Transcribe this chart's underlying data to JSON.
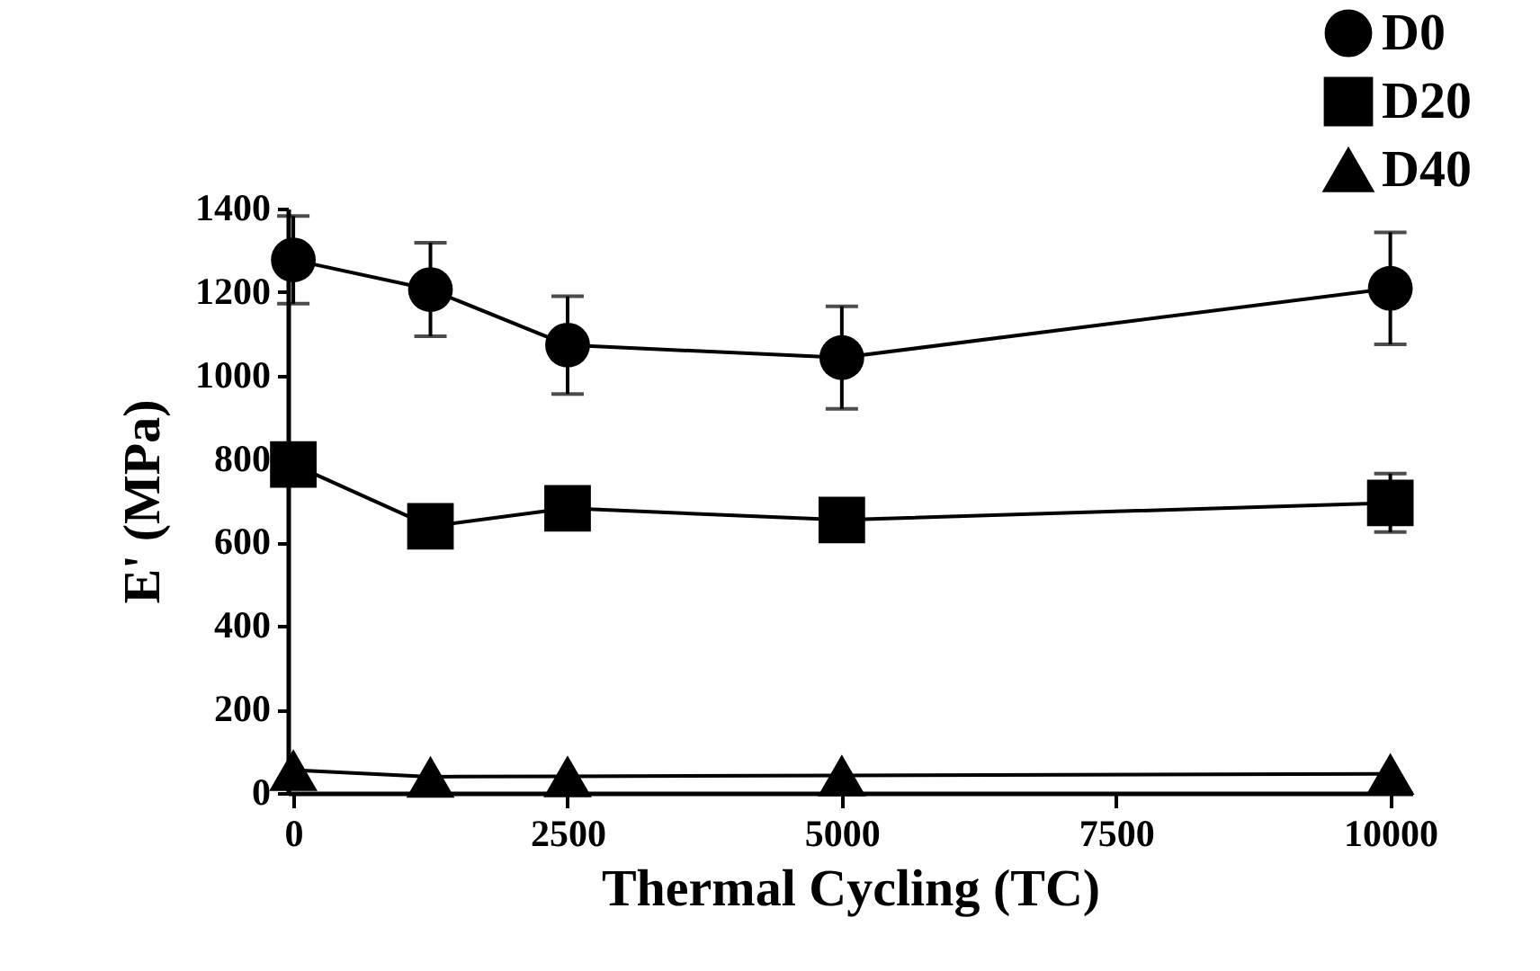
{
  "chart_data": {
    "type": "line",
    "xlabel": "Thermal Cycling (TC)",
    "ylabel": "E' (MPa)",
    "x": [
      0,
      1250,
      2500,
      5000,
      10000
    ],
    "series": [
      {
        "name": "D0",
        "color": "#000000",
        "marker": "circle",
        "values": [
          1277,
          1206,
          1073,
          1043,
          1209
        ],
        "errors": [
          105,
          112,
          117,
          123,
          134
        ]
      },
      {
        "name": "D20",
        "color": "#000000",
        "marker": "square",
        "values": [
          787,
          639,
          682,
          654,
          695
        ],
        "errors": [
          null,
          null,
          null,
          null,
          70
        ]
      },
      {
        "name": "D40",
        "color": "#000000",
        "marker": "triangle",
        "values": [
          55,
          39,
          40,
          42,
          46
        ]
      }
    ],
    "xlim": [
      -50,
      10200
    ],
    "xticks": [
      0,
      2500,
      5000,
      7500,
      10000
    ],
    "ylim": [
      0,
      1400
    ],
    "yticks": [
      0,
      200,
      400,
      600,
      800,
      1000,
      1200,
      1400
    ],
    "grid": false,
    "legend": "top right",
    "line_style": "solid"
  }
}
